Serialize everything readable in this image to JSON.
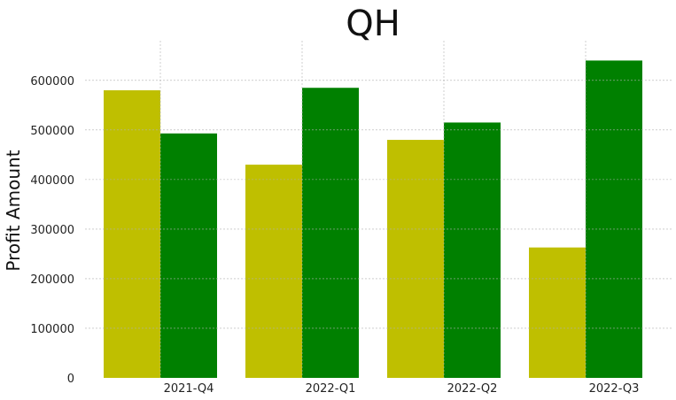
{
  "chart_data": {
    "type": "bar",
    "title": "QH",
    "xlabel": "",
    "ylabel": "Profit Amount",
    "categories": [
      "2021-Q4",
      "2022-Q1",
      "2022-Q2",
      "2022-Q3"
    ],
    "series": [
      {
        "values": [
          580000,
          430000,
          480000,
          263000
        ],
        "color": "#bfbf00"
      },
      {
        "values": [
          493000,
          585000,
          515000,
          640000
        ],
        "color": "#008000"
      }
    ],
    "ylim": [
      0,
      680000
    ],
    "yticks": [
      0,
      100000,
      200000,
      300000,
      400000,
      500000,
      600000
    ],
    "ytick_labels": [
      "0",
      "100000",
      "200000",
      "300000",
      "400000",
      "500000",
      "600000"
    ],
    "grid": true,
    "legend": "none"
  }
}
